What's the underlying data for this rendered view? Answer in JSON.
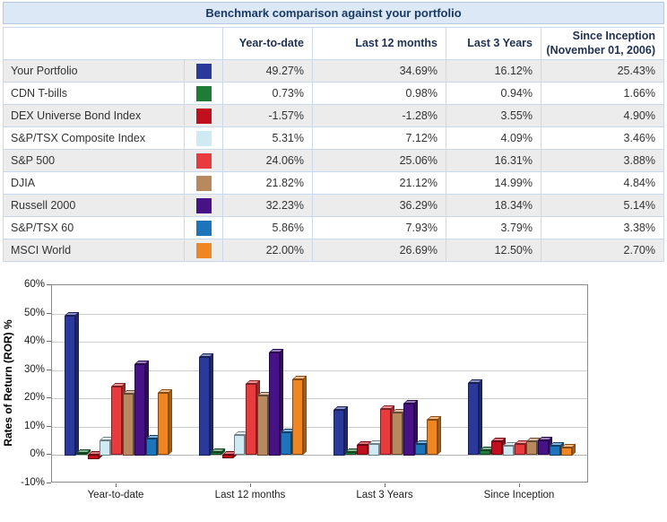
{
  "table": {
    "title": "Benchmark comparison against your portfolio",
    "columns": [
      {
        "label": "Year-to-date",
        "sublabel": ""
      },
      {
        "label": "Last 12 months",
        "sublabel": ""
      },
      {
        "label": "Last 3 Years",
        "sublabel": ""
      },
      {
        "label": "Since Inception",
        "sublabel": "(November 01, 2006)"
      }
    ],
    "rows": [
      {
        "label": "Your Portfolio",
        "color": "#2B3A9A",
        "values": [
          "49.27%",
          "34.69%",
          "16.12%",
          "25.43%"
        ]
      },
      {
        "label": "CDN T-bills",
        "color": "#1E7B38",
        "values": [
          "0.73%",
          "0.98%",
          "0.94%",
          "1.66%"
        ]
      },
      {
        "label": "DEX Universe Bond Index",
        "color": "#C20F1E",
        "values": [
          "-1.57%",
          "-1.28%",
          "3.55%",
          "4.90%"
        ]
      },
      {
        "label": "S&P/TSX Composite Index",
        "color": "#D0EAF4",
        "values": [
          "5.31%",
          "7.12%",
          "4.09%",
          "3.46%"
        ]
      },
      {
        "label": "S&P 500",
        "color": "#E83B3E",
        "values": [
          "24.06%",
          "25.06%",
          "16.31%",
          "3.88%"
        ]
      },
      {
        "label": "DJIA",
        "color": "#B8885F",
        "values": [
          "21.82%",
          "21.12%",
          "14.99%",
          "4.84%"
        ]
      },
      {
        "label": "Russell 2000",
        "color": "#471285",
        "values": [
          "32.23%",
          "36.29%",
          "18.34%",
          "5.14%"
        ]
      },
      {
        "label": "S&P/TSX 60",
        "color": "#1C75BA",
        "values": [
          "5.86%",
          "7.93%",
          "3.79%",
          "3.38%"
        ]
      },
      {
        "label": "MSCI World",
        "color": "#F08622",
        "values": [
          "22.00%",
          "26.69%",
          "12.50%",
          "2.70%"
        ]
      }
    ]
  },
  "chart_data": {
    "type": "bar",
    "title": "",
    "xlabel": "",
    "ylabel": "Rates of Return (ROR) %",
    "ylim": [
      -10,
      60
    ],
    "ytick_step": 10,
    "ytick_suffix": "%",
    "grid": true,
    "legend_position": "none",
    "categories": [
      "Year-to-date",
      "Last 12 months",
      "Last 3 Years",
      "Since Inception"
    ],
    "series": [
      {
        "name": "Your Portfolio",
        "color": "#2B3A9A",
        "values": [
          49.27,
          34.69,
          16.12,
          25.43
        ]
      },
      {
        "name": "CDN T-bills",
        "color": "#1E7B38",
        "values": [
          0.73,
          0.98,
          0.94,
          1.66
        ]
      },
      {
        "name": "DEX Universe Bond Index",
        "color": "#C20F1E",
        "values": [
          -1.57,
          -1.28,
          3.55,
          4.9
        ]
      },
      {
        "name": "S&P/TSX Composite Index",
        "color": "#D0EAF4",
        "values": [
          5.31,
          7.12,
          4.09,
          3.46
        ]
      },
      {
        "name": "S&P 500",
        "color": "#E83B3E",
        "values": [
          24.06,
          25.06,
          16.31,
          3.88
        ]
      },
      {
        "name": "DJIA",
        "color": "#B8885F",
        "values": [
          21.82,
          21.12,
          14.99,
          4.84
        ]
      },
      {
        "name": "Russell 2000",
        "color": "#471285",
        "values": [
          32.23,
          36.29,
          18.34,
          5.14
        ]
      },
      {
        "name": "S&P/TSX 60",
        "color": "#1C75BA",
        "values": [
          5.86,
          7.93,
          3.79,
          3.38
        ]
      },
      {
        "name": "MSCI World",
        "color": "#F08622",
        "values": [
          22.0,
          26.69,
          12.5,
          2.7
        ]
      }
    ]
  }
}
